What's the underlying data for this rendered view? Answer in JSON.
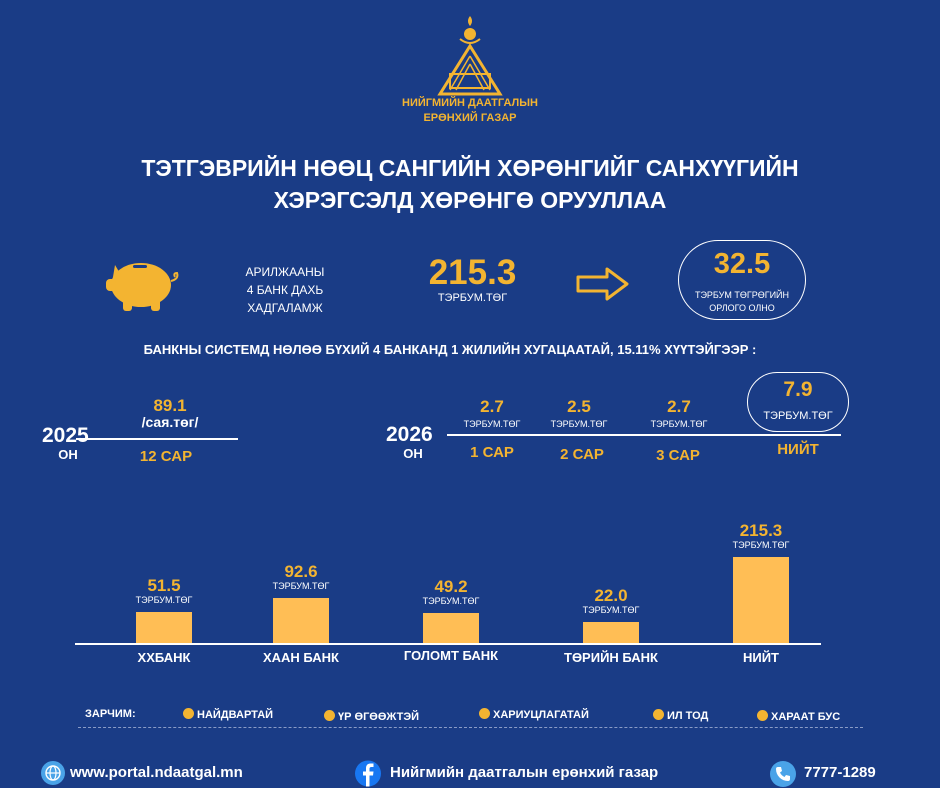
{
  "logo": {
    "line1": "НИЙГМИЙН ДААТГАЛЫН",
    "line2": "ЕРӨНХИЙ ГАЗАР"
  },
  "title": {
    "line1": "ТЭТГЭВРИЙН НӨӨЦ САНГИЙН ХӨРӨНГИЙГ САНХҮҮГИЙН",
    "line2": "ХЭРЭГСЭЛД ХӨРӨНГӨ ОРУУЛЛАА"
  },
  "summary": {
    "desc1": "АРИЛЖААНЫ",
    "desc2": "4 БАНК ДАХЬ",
    "desc3": "ХАДГАЛАМЖ",
    "amount": "215.3",
    "amount_unit": "ТЭРБУМ.ТӨГ",
    "income": "32.5",
    "income_unit1": "ТЭРБУМ ТӨГРӨГИЙН",
    "income_unit2": "ОРЛОГО ОЛНО"
  },
  "subtitle": "БАНКНЫ СИСТЕМД НӨЛӨӨ БҮХИЙ 4 БАНКАНД  1 ЖИЛИЙН ХУГАЦААТАЙ, 15.11% ХҮҮТЭЙГЭЭР :",
  "y2025": {
    "year": "2025",
    "on": "ОН",
    "value": "89.1",
    "unit": "/сая.төг/",
    "period": "12 САР"
  },
  "y2026": {
    "year": "2026",
    "on": "ОН",
    "months": [
      {
        "value": "2.7",
        "unit": "ТЭРБУМ.ТӨГ",
        "label": "1 САР"
      },
      {
        "value": "2.5",
        "unit": "ТЭРБУМ.ТӨГ",
        "label": "2 САР"
      },
      {
        "value": "2.7",
        "unit": "ТЭРБУМ.ТӨГ",
        "label": "3 САР"
      }
    ],
    "total": {
      "value": "7.9",
      "unit": "ТЭРБУМ.ТӨГ",
      "label": "НИЙТ"
    }
  },
  "chart_data": {
    "type": "bar",
    "categories": [
      "ХХБАНК",
      "ХААН БАНК",
      "ГОЛОМТ БАНК",
      "ТӨРИЙН БАНК",
      "НИЙТ"
    ],
    "values": [
      51.5,
      92.6,
      49.2,
      22.0,
      215.3
    ],
    "value_labels": [
      "51.5",
      "92.6",
      "49.2",
      "22.0",
      "215.3"
    ],
    "unit": "ТЭРБУМ.ТӨГ",
    "bar_color": "#ffbe55"
  },
  "legend": {
    "label": "ЗАРЧИМ:",
    "items": [
      "НАЙДВАРТАЙ",
      "ҮР ӨГӨӨЖТЭЙ",
      "ХАРИУЦЛАГАТАЙ",
      "ИЛ ТОД",
      "ХАРААТ БУС"
    ]
  },
  "footer": {
    "website": "www.portal.ndaatgal.mn",
    "facebook": "Нийгмийн даатгалын ерөнхий газар",
    "phone": "7777-1289"
  },
  "colors": {
    "background": "#1a3c86",
    "accent": "#f3b431"
  }
}
